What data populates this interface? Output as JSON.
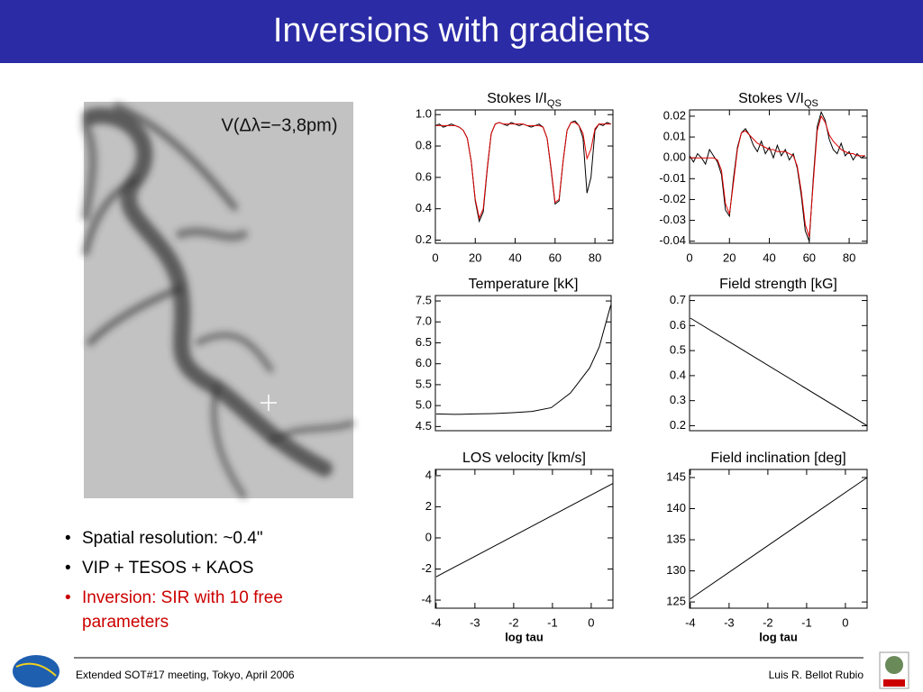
{
  "slide": {
    "title": "Inversions with gradients",
    "image_label": "V(Δλ=−3,8pm)",
    "bullets": [
      "Spatial resolution: ~0.4\"",
      "VIP + TESOS + KAOS",
      "Inversion: SIR with 10 free parameters"
    ],
    "footer_left": "Extended SOT#17 meeting, Tokyo, April 2006",
    "footer_right": "Luis R. Bellot Rubio"
  },
  "chart_data": [
    {
      "type": "line",
      "title": "Stokes I/I",
      "title_sub": "QS",
      "x": [
        0,
        2,
        4,
        6,
        8,
        10,
        12,
        14,
        16,
        18,
        20,
        22,
        24,
        26,
        28,
        30,
        32,
        34,
        36,
        38,
        40,
        42,
        44,
        46,
        48,
        50,
        52,
        54,
        56,
        58,
        60,
        62,
        64,
        66,
        68,
        70,
        72,
        74,
        76,
        78,
        80,
        82,
        84,
        86,
        88
      ],
      "series": [
        {
          "color": "#000000",
          "values": [
            0.93,
            0.94,
            0.92,
            0.93,
            0.94,
            0.93,
            0.92,
            0.9,
            0.85,
            0.7,
            0.45,
            0.32,
            0.38,
            0.65,
            0.88,
            0.94,
            0.95,
            0.94,
            0.93,
            0.95,
            0.94,
            0.93,
            0.94,
            0.93,
            0.92,
            0.93,
            0.94,
            0.92,
            0.85,
            0.65,
            0.43,
            0.45,
            0.7,
            0.9,
            0.95,
            0.96,
            0.93,
            0.85,
            0.5,
            0.6,
            0.9,
            0.94,
            0.93,
            0.95,
            0.94
          ]
        },
        {
          "color": "#dd0000",
          "values": [
            0.93,
            0.93,
            0.93,
            0.93,
            0.93,
            0.93,
            0.92,
            0.9,
            0.85,
            0.7,
            0.46,
            0.34,
            0.4,
            0.66,
            0.88,
            0.94,
            0.95,
            0.94,
            0.94,
            0.94,
            0.94,
            0.94,
            0.94,
            0.93,
            0.93,
            0.93,
            0.93,
            0.92,
            0.85,
            0.66,
            0.44,
            0.46,
            0.7,
            0.9,
            0.95,
            0.95,
            0.93,
            0.88,
            0.72,
            0.78,
            0.91,
            0.94,
            0.94,
            0.94,
            0.94
          ]
        }
      ],
      "xlim": [
        0,
        89
      ],
      "ylim": [
        0.18,
        1.03
      ],
      "xticks": [
        0,
        20,
        40,
        60,
        80
      ],
      "yticks": [
        {
          "value": 1,
          "label": "1.0"
        },
        0.8,
        0.6,
        0.4,
        0.2
      ]
    },
    {
      "type": "line",
      "title": "Stokes V/I",
      "title_sub": "QS",
      "x": [
        0,
        2,
        4,
        6,
        8,
        10,
        12,
        14,
        16,
        18,
        20,
        22,
        24,
        26,
        28,
        30,
        32,
        34,
        36,
        38,
        40,
        42,
        44,
        46,
        48,
        50,
        52,
        54,
        56,
        58,
        60,
        62,
        64,
        66,
        68,
        70,
        72,
        74,
        76,
        78,
        80,
        82,
        84,
        86,
        88
      ],
      "series": [
        {
          "color": "#000000",
          "values": [
            0.001,
            -0.002,
            0.002,
            0,
            -0.003,
            0.004,
            0.001,
            -0.002,
            -0.008,
            -0.025,
            -0.028,
            -0.01,
            0.005,
            0.012,
            0.014,
            0.011,
            0.006,
            0.003,
            0.008,
            0.002,
            0.005,
            0,
            0.006,
            0.001,
            0.004,
            -0.001,
            0.002,
            -0.005,
            -0.018,
            -0.035,
            -0.04,
            -0.01,
            0.015,
            0.022,
            0.018,
            0.009,
            0.004,
            0.002,
            0.007,
            0.001,
            0.003,
            -0.001,
            0.002,
            0,
            0.001
          ]
        },
        {
          "color": "#dd0000",
          "values": [
            0,
            0,
            0,
            0,
            0,
            0,
            0,
            -0.001,
            -0.006,
            -0.022,
            -0.027,
            -0.012,
            0.004,
            0.012,
            0.013,
            0.011,
            0.009,
            0.007,
            0.006,
            0.005,
            0.004,
            0.004,
            0.003,
            0.003,
            0.003,
            0.002,
            0.001,
            -0.004,
            -0.016,
            -0.032,
            -0.038,
            -0.012,
            0.013,
            0.02,
            0.017,
            0.011,
            0.008,
            0.006,
            0.004,
            0.003,
            0.002,
            0.002,
            0.001,
            0.001,
            0.001
          ]
        }
      ],
      "xlim": [
        0,
        89
      ],
      "ylim": [
        -0.041,
        0.023
      ],
      "xticks": [
        0,
        20,
        40,
        60,
        80
      ],
      "yticks": [
        0.02,
        0.01,
        {
          "value": 0,
          "label": "0.00"
        },
        -0.01,
        -0.02,
        -0.03,
        -0.04
      ]
    },
    {
      "type": "line",
      "title": "Temperature [kK]",
      "x": [
        -4,
        -3.5,
        -3,
        -2.5,
        -2,
        -1.5,
        -1,
        -0.5,
        0,
        0.25,
        0.55
      ],
      "series": [
        {
          "color": "#000000",
          "values": [
            4.8,
            4.79,
            4.8,
            4.81,
            4.83,
            4.86,
            4.95,
            5.3,
            5.9,
            6.4,
            7.4
          ]
        }
      ],
      "xlim": [
        -4.02,
        0.56
      ],
      "ylim": [
        4.4,
        7.63
      ],
      "yticks": [
        7.5,
        {
          "value": 7,
          "label": "7.0"
        },
        6.5,
        {
          "value": 6,
          "label": "6.0"
        },
        5.5,
        {
          "value": 5,
          "label": "5.0"
        },
        4.5
      ]
    },
    {
      "type": "line",
      "title": "Field strength [kG]",
      "x": [
        -4,
        0.56
      ],
      "series": [
        {
          "color": "#000000",
          "values": [
            0.63,
            0.2
          ]
        }
      ],
      "xlim": [
        -4.02,
        0.56
      ],
      "ylim": [
        0.18,
        0.72
      ],
      "yticks": [
        0.7,
        0.6,
        0.5,
        0.4,
        0.3,
        0.2
      ]
    },
    {
      "type": "line",
      "title": "LOS velocity [km/s]",
      "xlabel": "log tau",
      "x": [
        -4,
        0.56
      ],
      "series": [
        {
          "color": "#000000",
          "values": [
            -2.5,
            3.5
          ]
        }
      ],
      "xlim": [
        -4.02,
        0.56
      ],
      "ylim": [
        -4.52,
        4.4
      ],
      "xticks": [
        -4,
        -3,
        -2,
        -1,
        0
      ],
      "yticks": [
        4,
        2,
        0,
        -2,
        -4
      ]
    },
    {
      "type": "line",
      "title": "Field inclination [deg]",
      "xlabel": "log tau",
      "x": [
        -4,
        0.56
      ],
      "series": [
        {
          "color": "#000000",
          "values": [
            125.5,
            145
          ]
        }
      ],
      "xlim": [
        -4.02,
        0.56
      ],
      "ylim": [
        124,
        146.3
      ],
      "xticks": [
        -4,
        -3,
        -2,
        -1,
        0
      ],
      "yticks": [
        145,
        140,
        135,
        130,
        125
      ]
    }
  ]
}
